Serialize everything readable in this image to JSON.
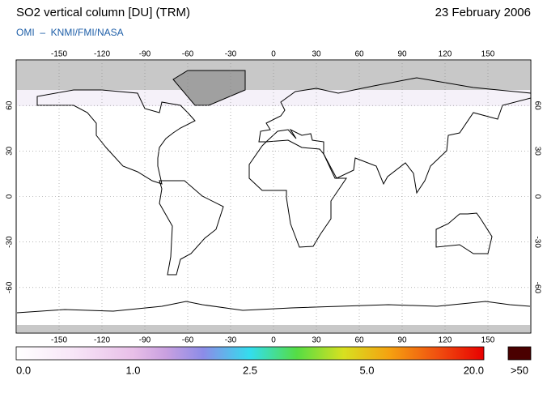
{
  "header": {
    "title": "SO2 vertical column [DU] (TRM)",
    "date": "23 February 2006",
    "subtitle": "OMI  –  KNMI/FMI/NASA"
  },
  "map": {
    "lon_ticks": [
      -150,
      -120,
      -90,
      -60,
      -30,
      0,
      30,
      60,
      90,
      120,
      150
    ],
    "lat_ticks": [
      60,
      30,
      0,
      -30,
      -60
    ]
  },
  "colorbar": {
    "labels": [
      "0.0",
      "1.0",
      "2.5",
      "5.0",
      "20.0"
    ],
    "overflow_label": ">50"
  }
}
